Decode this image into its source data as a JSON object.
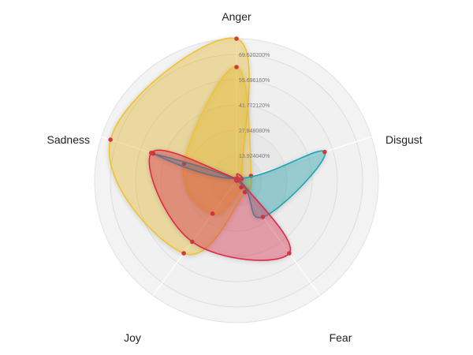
{
  "chart_data": {
    "type": "radar",
    "axes": [
      "Anger",
      "Disgust",
      "Fear",
      "Joy",
      "Sadness"
    ],
    "tick_labels": [
      "13.924040%",
      "27.848080%",
      "41.772120%",
      "55.696160%",
      "69.620200%"
    ],
    "range": [
      0,
      69.6202
    ],
    "ring_count": 5,
    "grid": true,
    "legend": "none",
    "series": [
      {
        "color": "#f2c12e",
        "values": [
          69.6,
          2.7,
          7.0,
          44.0,
          65.0
        ]
      },
      {
        "color": "#f2c12e",
        "values": [
          55.7,
          7.5,
          4.0,
          20.0,
          27.0
        ]
      },
      {
        "color": "#1aa3b3",
        "values": [
          1.0,
          45.5,
          22.0,
          0.0,
          43.0
        ]
      },
      {
        "color": "#e0284a",
        "values": [
          1.0,
          1.5,
          44.0,
          37.0,
          44.0
        ]
      }
    ]
  }
}
